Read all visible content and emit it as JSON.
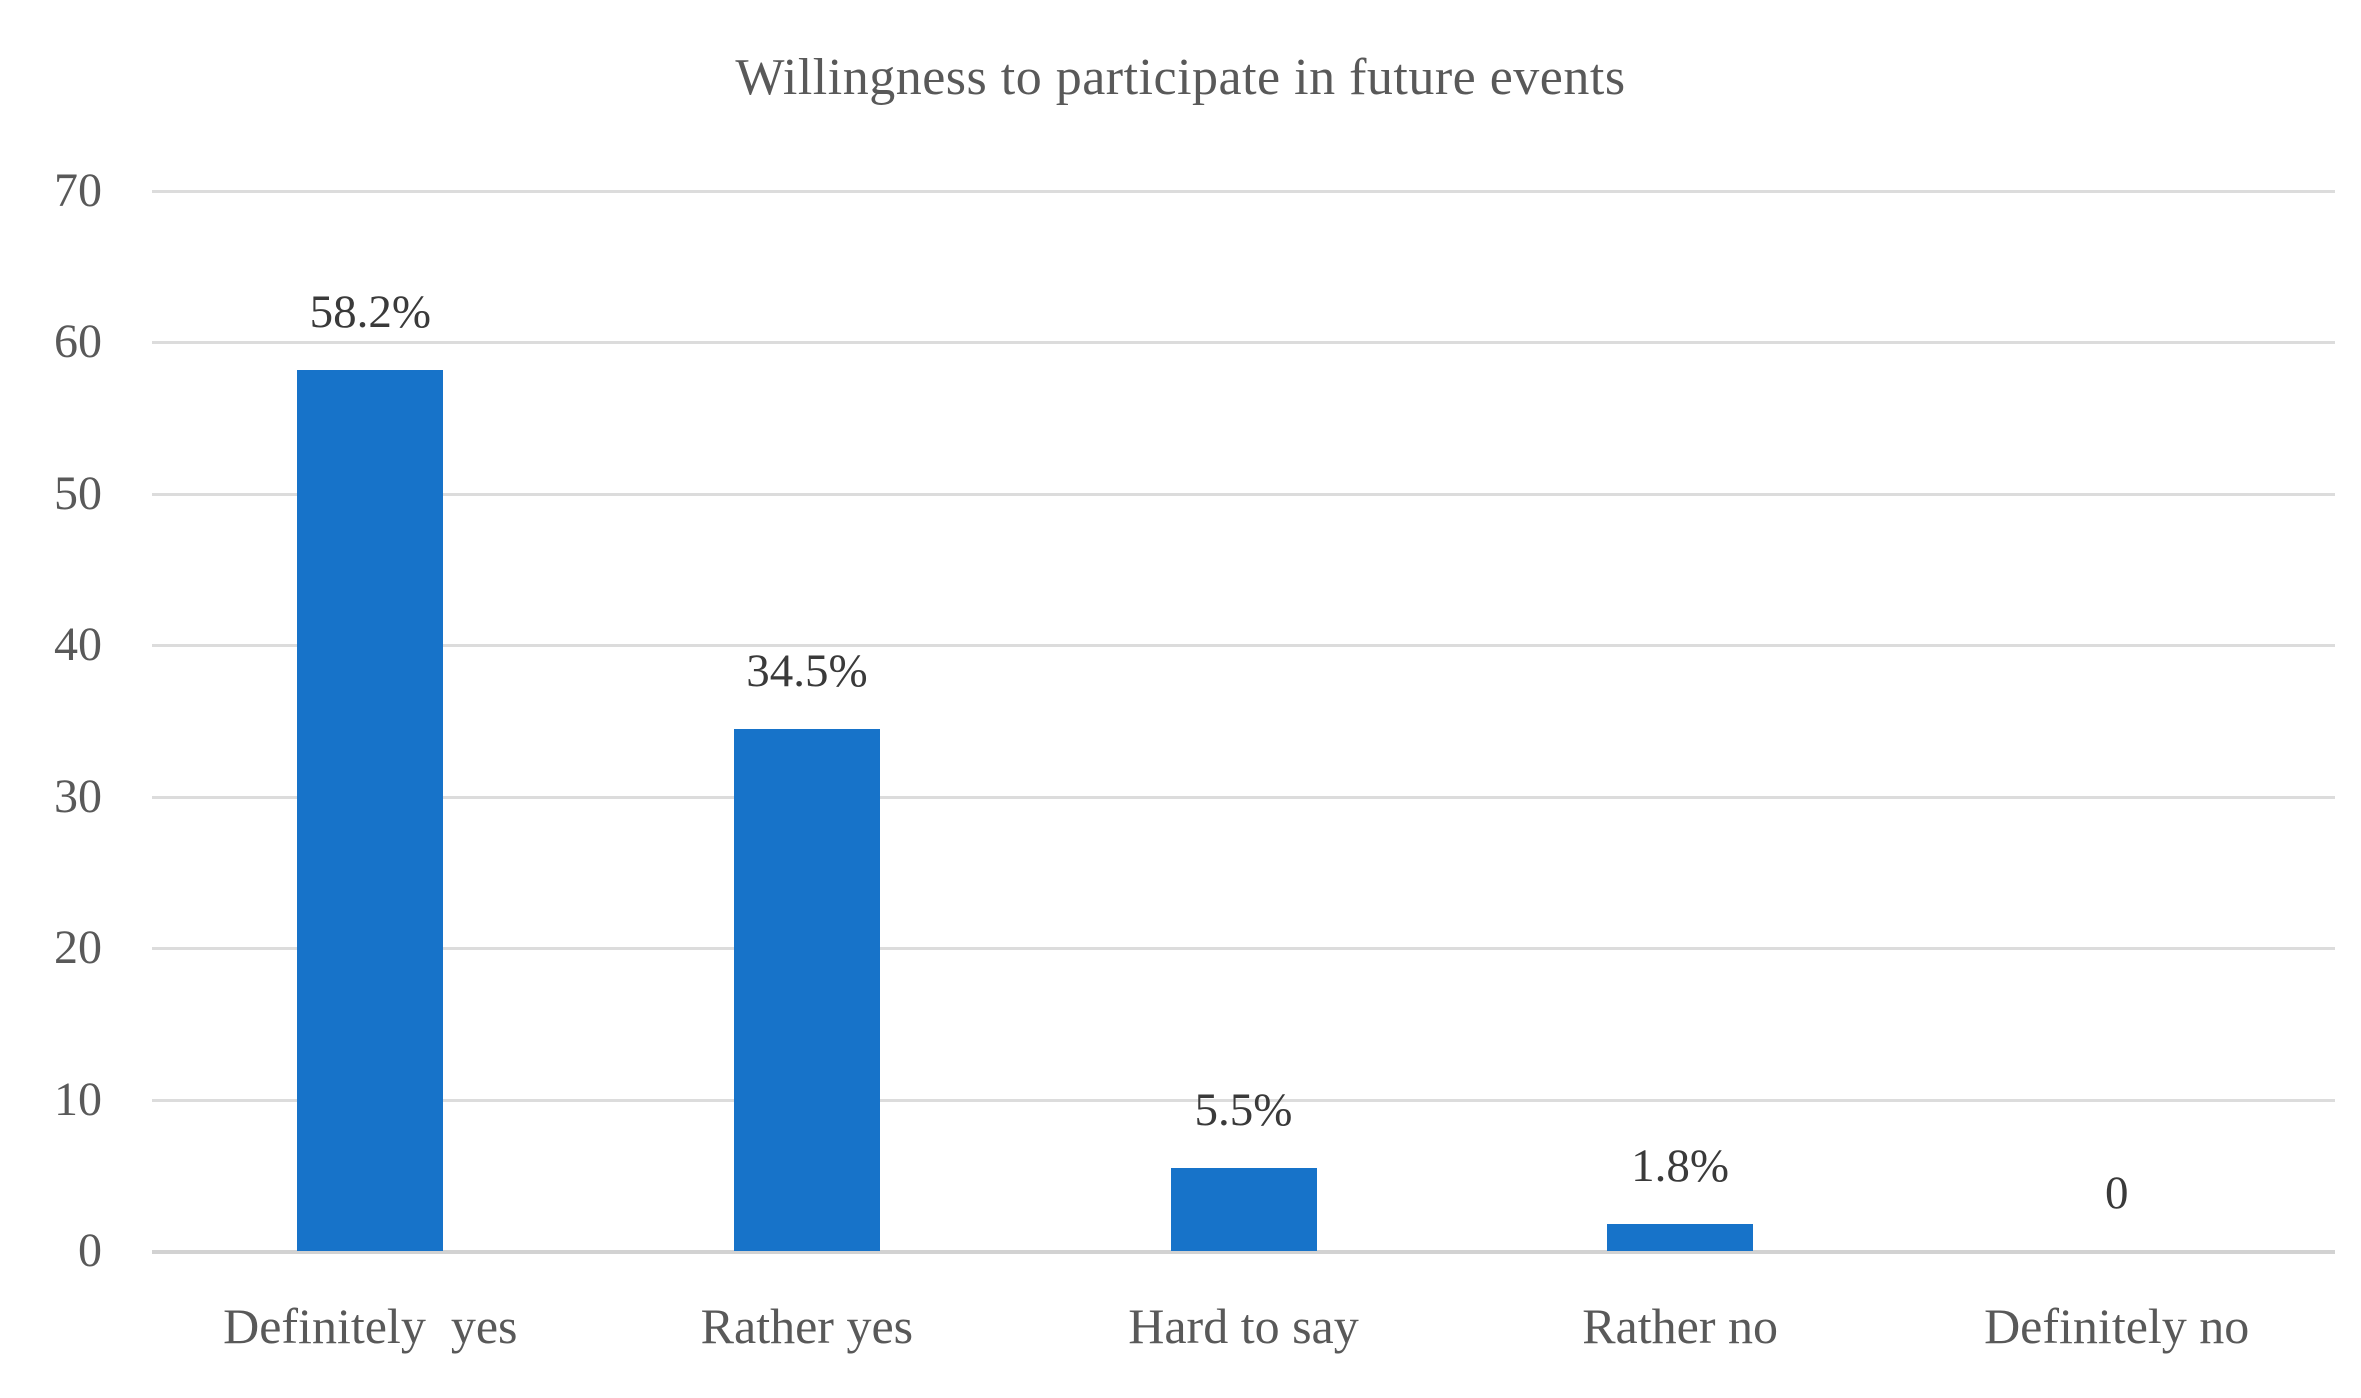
{
  "chart_data": {
    "type": "bar",
    "title": "Willingness to participate in future events",
    "categories": [
      "Definitely  yes",
      "Rather yes",
      "Hard to say",
      "Rather no",
      "Definitely no"
    ],
    "values": [
      58.2,
      34.5,
      5.5,
      1.8,
      0
    ],
    "data_labels": [
      "58.2%",
      "34.5%",
      "5.5%",
      "1.8%",
      "0"
    ],
    "xlabel": "",
    "ylabel": "",
    "y_ticks": [
      0,
      10,
      20,
      30,
      40,
      50,
      60,
      70
    ],
    "ylim": [
      0,
      70
    ],
    "grid": true,
    "legend": false,
    "colors": {
      "bar": "#1773C9",
      "title": "#595959",
      "axis_labels": "#595959",
      "data_labels": "#3A3A3A",
      "gridline": "#DCDCDC",
      "baseline": "#D2D2D2",
      "background": "#FFFFFF"
    }
  }
}
